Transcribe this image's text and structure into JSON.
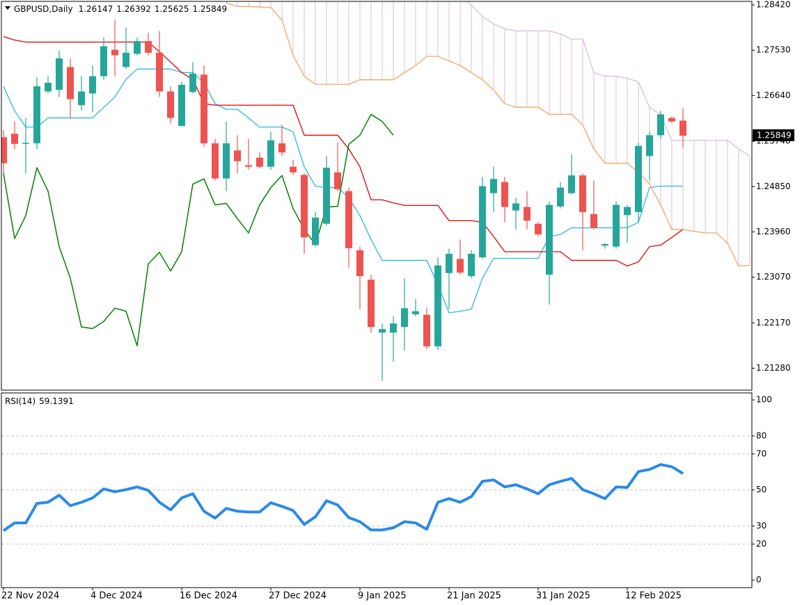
{
  "chart_data": [
    {
      "type": "candlestick",
      "title": "GBPUSD,Daily",
      "categories": [
        "22 Nov 2024",
        null,
        null,
        null,
        null,
        null,
        null,
        null,
        "4 Dec 2024",
        null,
        null,
        null,
        null,
        null,
        null,
        null,
        "16 Dec 2024",
        null,
        null,
        null,
        null,
        null,
        null,
        null,
        "27 Dec 2024",
        null,
        null,
        null,
        null,
        null,
        null,
        null,
        "9 Jan 2025",
        null,
        null,
        null,
        null,
        null,
        null,
        null,
        "21 Jan 2025",
        null,
        null,
        null,
        null,
        null,
        null,
        null,
        "31 Jan 2025",
        null,
        null,
        null,
        null,
        null,
        null,
        null,
        "12 Feb 2025",
        null,
        null,
        null,
        null,
        null,
        null,
        null,
        null,
        null,
        null,
        null
      ],
      "open": [
        1.2582,
        1.2589,
        1.257,
        1.257,
        1.2672,
        1.2675,
        1.272,
        1.2645,
        1.2668,
        1.2702,
        1.2754,
        1.272,
        1.2746,
        1.2771,
        1.2748,
        1.2672,
        1.2604,
        1.2671,
        1.2705,
        1.257,
        1.2501,
        1.2556,
        1.2527,
        1.2542,
        1.2524,
        1.257,
        1.2524,
        1.2508,
        1.237,
        1.2412,
        1.2513,
        1.2476,
        1.236,
        1.2302,
        1.2198,
        1.2198,
        1.2209,
        1.2234,
        1.2233,
        1.2171,
        1.2315,
        1.2343,
        1.2309,
        1.2346,
        1.2472,
        1.2494,
        1.2438,
        1.2445,
        1.2412,
        1.2312,
        1.2446,
        1.2472,
        1.2507,
        1.2431,
        1.2369,
        1.2367,
        1.2429,
        1.2435,
        1.2545,
        1.2586,
        1.262,
        1.26147,
        null,
        null,
        null,
        null,
        null,
        null
      ],
      "high": [
        1.2596,
        1.2613,
        1.262,
        1.27,
        1.2702,
        1.2753,
        1.2737,
        1.2702,
        1.2723,
        1.2778,
        1.2812,
        1.2798,
        1.2778,
        1.2787,
        1.2791,
        1.2682,
        1.2691,
        1.273,
        1.2723,
        1.2579,
        1.2613,
        1.2586,
        1.2579,
        1.2552,
        1.2593,
        1.2607,
        1.2538,
        1.2511,
        1.2435,
        1.2545,
        1.2572,
        1.2483,
        1.2367,
        1.2312,
        1.2216,
        1.223,
        1.2305,
        1.2264,
        1.2247,
        1.2346,
        1.2363,
        1.2381,
        1.236,
        1.2504,
        1.2524,
        1.2504,
        1.2463,
        1.2476,
        1.2415,
        1.2456,
        1.2494,
        1.2549,
        1.2511,
        1.2497,
        1.2374,
        1.2456,
        1.2449,
        1.2572,
        1.2593,
        1.2634,
        1.2623,
        1.26392,
        null,
        null,
        null,
        null,
        null,
        null
      ],
      "low": [
        1.2511,
        1.2558,
        1.2511,
        1.2558,
        1.2668,
        1.2661,
        1.262,
        1.2634,
        1.2631,
        1.2695,
        1.2702,
        1.2716,
        1.2743,
        1.2743,
        1.2661,
        1.2609,
        1.2604,
        1.2668,
        1.2563,
        1.2497,
        1.2476,
        1.2511,
        1.2518,
        1.2521,
        1.2518,
        1.2545,
        1.2508,
        1.2353,
        1.2367,
        1.2408,
        1.2476,
        1.2326,
        1.2244,
        1.2198,
        1.2103,
        1.2141,
        1.2162,
        1.223,
        1.2166,
        1.2164,
        1.2244,
        1.2312,
        1.2305,
        1.2343,
        1.2435,
        1.2415,
        1.2401,
        1.2401,
        1.2387,
        1.2253,
        1.2442,
        1.247,
        1.236,
        1.2401,
        1.2363,
        1.2363,
        1.2374,
        1.2415,
        1.2497,
        1.2579,
        1.2609,
        1.25625,
        null,
        null,
        null,
        null,
        null,
        null
      ],
      "close": [
        1.2531,
        1.2569,
        1.2571,
        1.2682,
        1.2689,
        1.2737,
        1.2657,
        1.2672,
        1.2702,
        1.2761,
        1.2743,
        1.2748,
        1.2771,
        1.2748,
        1.2672,
        1.262,
        1.2685,
        1.2707,
        1.257,
        1.2501,
        1.257,
        1.2535,
        1.2524,
        1.2524,
        1.2576,
        1.2552,
        1.2513,
        1.2385,
        1.2424,
        1.2522,
        1.248,
        1.2364,
        1.2309,
        1.2209,
        1.2205,
        1.2216,
        1.2246,
        1.224,
        1.2171,
        1.233,
        1.2353,
        1.2316,
        1.2353,
        1.2486,
        1.25,
        1.2445,
        1.2452,
        1.2418,
        1.2391,
        1.2449,
        1.2483,
        1.2507,
        1.2435,
        1.2404,
        1.2372,
        1.2449,
        1.2445,
        1.2565,
        1.2586,
        1.2627,
        1.2613,
        1.25849,
        null,
        null,
        null,
        null,
        null,
        null
      ],
      "up_color": "#26a69a",
      "down_color": "#ef5350",
      "series": [
        {
          "color": "#29b6e6",
          "values": [
            1.2682,
            1.2634,
            1.2602,
            1.2602,
            1.262,
            1.262,
            1.262,
            1.262,
            1.262,
            1.2641,
            1.2661,
            1.2696,
            1.2716,
            1.2716,
            1.2716,
            1.2716,
            1.2709,
            1.2709,
            1.2689,
            1.2648,
            1.2637,
            1.2637,
            1.262,
            1.2602,
            1.2602,
            1.2602,
            1.2593,
            1.2524,
            1.2486,
            1.2483,
            1.2483,
            1.2463,
            1.2428,
            1.2381,
            1.234,
            1.234,
            1.234,
            1.234,
            1.234,
            1.2292,
            1.2237,
            1.224,
            1.2244,
            1.2305,
            1.2344,
            1.2344,
            1.2344,
            1.2344,
            1.2344,
            1.2387,
            1.2391,
            1.2404,
            1.2404,
            1.2404,
            1.2404,
            1.2404,
            1.2404,
            1.2415,
            1.2483,
            1.2486,
            1.2486,
            1.2486,
            null,
            null,
            null,
            null,
            null,
            null
          ]
        },
        {
          "color": "#e00000",
          "values": [
            1.278,
            1.2773,
            1.2769,
            1.2769,
            1.2769,
            1.2769,
            1.2769,
            1.2769,
            1.2769,
            1.2769,
            1.2769,
            1.2769,
            1.2769,
            1.2769,
            1.275,
            1.273,
            1.2709,
            1.2696,
            1.2648,
            1.2645,
            1.2645,
            1.2645,
            1.2645,
            1.2645,
            1.2645,
            1.2645,
            1.2645,
            1.2586,
            1.2586,
            1.2586,
            1.2586,
            1.2559,
            1.2524,
            1.2459,
            1.2459,
            1.2453,
            1.2448,
            1.2448,
            1.2448,
            1.2448,
            1.2418,
            1.2418,
            1.2418,
            1.2415,
            1.2387,
            1.2357,
            1.2357,
            1.2357,
            1.2357,
            1.2357,
            1.2357,
            1.234,
            1.234,
            1.234,
            1.234,
            1.234,
            1.2329,
            1.2337,
            1.2367,
            1.237,
            1.2385,
            1.2401,
            null,
            null,
            null,
            null,
            null,
            null
          ]
        },
        {
          "color": "#008000",
          "values": [
            1.2511,
            1.2383,
            1.2428,
            1.2522,
            1.2476,
            1.2367,
            1.2305,
            1.2209,
            1.2206,
            1.222,
            1.2246,
            1.224,
            1.2172,
            1.2333,
            1.2356,
            1.2319,
            1.2357,
            1.249,
            1.25,
            1.2449,
            1.2452,
            1.2422,
            1.2394,
            1.2449,
            1.2483,
            1.2507,
            1.2442,
            1.2401,
            1.2371,
            1.2445,
            1.2446,
            1.2568,
            1.2586,
            1.2627,
            1.2613,
            1.2586,
            null,
            null,
            null,
            null,
            null,
            null,
            null,
            null,
            null,
            null,
            null,
            null,
            null,
            null,
            null,
            null,
            null,
            null,
            null,
            null,
            null,
            null,
            null,
            null,
            null,
            null,
            null,
            null,
            null,
            null,
            null,
            null
          ]
        },
        {
          "color": "#f4a460",
          "values": [
            null,
            null,
            null,
            null,
            null,
            null,
            null,
            null,
            null,
            null,
            null,
            null,
            null,
            null,
            null,
            null,
            null,
            null,
            null,
            null,
            1.2846,
            1.2839,
            1.2839,
            1.2838,
            1.2837,
            1.2812,
            1.2743,
            1.2702,
            1.2686,
            1.2686,
            1.2686,
            1.2686,
            1.2695,
            1.2695,
            1.2695,
            1.2695,
            1.2709,
            1.2723,
            1.2741,
            1.2741,
            1.2732,
            1.2723,
            1.2709,
            1.2695,
            1.2675,
            1.2648,
            1.2641,
            1.2641,
            1.2641,
            1.2627,
            1.2627,
            1.2627,
            1.2606,
            1.2559,
            1.2531,
            1.2531,
            1.2531,
            1.2513,
            1.249,
            1.2449,
            1.2401,
            1.2401,
            1.2397,
            1.2394,
            1.2394,
            1.2374,
            1.2329,
            1.233
          ]
        },
        {
          "color": "#d8bfd8",
          "values": [
            null,
            null,
            null,
            null,
            null,
            null,
            null,
            null,
            null,
            null,
            null,
            null,
            null,
            null,
            null,
            null,
            null,
            null,
            null,
            null,
            1.286,
            1.286,
            1.286,
            1.286,
            1.286,
            1.286,
            1.286,
            1.286,
            1.286,
            1.286,
            1.286,
            1.286,
            1.286,
            1.286,
            1.286,
            1.286,
            1.286,
            1.286,
            1.286,
            1.286,
            1.286,
            1.286,
            1.2842,
            1.2819,
            1.2805,
            1.2795,
            1.2791,
            1.2791,
            1.2791,
            1.2791,
            1.2785,
            1.2775,
            1.2775,
            1.2709,
            1.2702,
            1.2702,
            1.2698,
            1.2691,
            1.2641,
            1.2627,
            1.2576,
            1.2576,
            1.2576,
            1.2576,
            1.2576,
            1.2576,
            1.2559,
            1.2545
          ]
        }
      ],
      "ylim": [
        1.2085,
        1.2849
      ],
      "yticks": [
        {
          "value": 1.2842,
          "label": "1.28420"
        },
        {
          "value": 1.2753,
          "label": "1.27530"
        },
        {
          "value": 1.2664,
          "label": "1.26640"
        },
        {
          "value": 1.2574,
          "label": "1.25740"
        },
        {
          "value": 1.2485,
          "label": "1.24850"
        },
        {
          "value": 1.2396,
          "label": "1.23960"
        },
        {
          "value": 1.2307,
          "label": "1.23070"
        },
        {
          "value": 1.2217,
          "label": "1.22170"
        },
        {
          "value": 1.2128,
          "label": "1.21280"
        }
      ]
    },
    {
      "type": "line",
      "title": "RSI(14)",
      "color": "#2a8ae8",
      "values": [
        27.4,
        31.7,
        31.7,
        42.5,
        43.2,
        47.1,
        41.3,
        43.2,
        45.6,
        50.6,
        49.0,
        50.2,
        51.7,
        49.8,
        43.2,
        39.0,
        45.6,
        47.9,
        38.2,
        34.4,
        39.8,
        38.2,
        37.8,
        37.8,
        42.9,
        40.9,
        38.6,
        30.9,
        35.1,
        44.0,
        41.7,
        34.7,
        32.4,
        27.8,
        27.8,
        29.0,
        32.4,
        31.7,
        28.2,
        43.2,
        45.2,
        43.2,
        46.3,
        54.8,
        55.6,
        51.7,
        52.9,
        50.6,
        47.9,
        52.9,
        54.8,
        56.4,
        50.2,
        47.9,
        45.2,
        51.7,
        51.4,
        60.2,
        61.4,
        64.1,
        62.9,
        59.1391
      ],
      "ylim": [
        -4.2,
        103.9
      ],
      "yticks": [
        100,
        80,
        70,
        50,
        30,
        20,
        0
      ],
      "grid": true
    }
  ]
}
